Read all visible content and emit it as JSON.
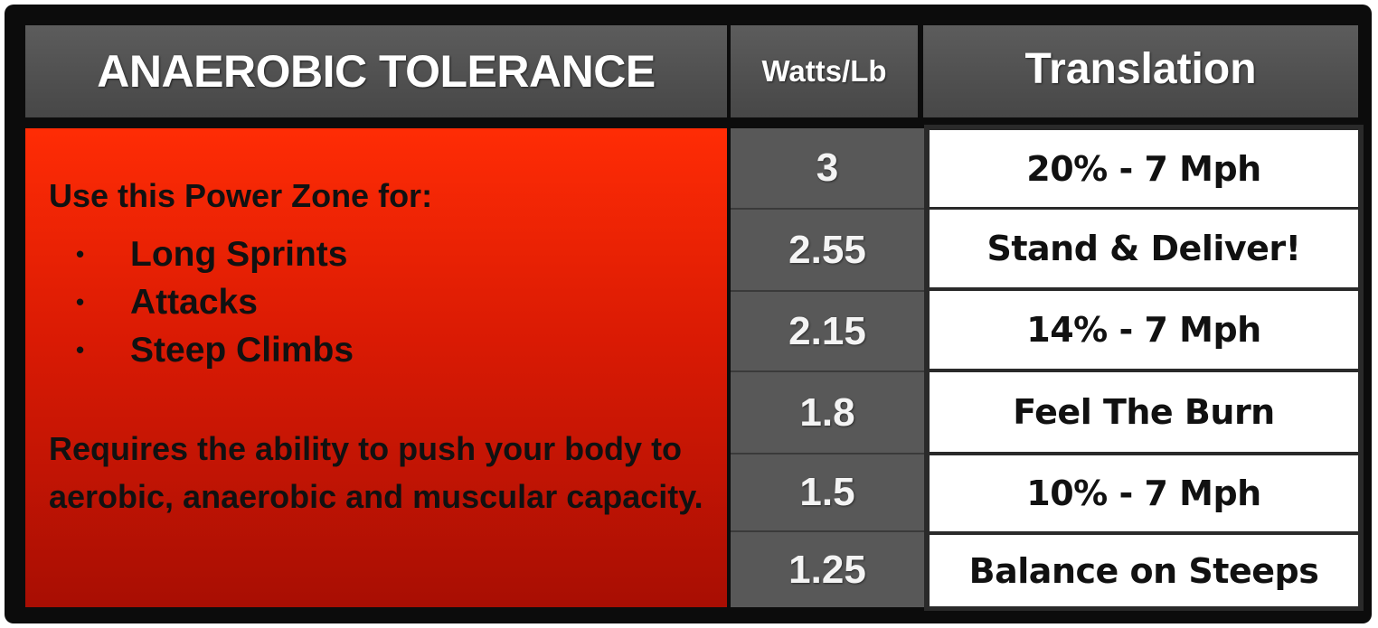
{
  "header": {
    "title": "ANAEROBIC TOLERANCE",
    "watts_label": "Watts/Lb",
    "translation_label": "Translation"
  },
  "info": {
    "intro": "Use this Power Zone for:",
    "uses": [
      "Long Sprints",
      "Attacks",
      "Steep Climbs"
    ],
    "bullet": "•",
    "requirement": "Requires the ability to push your body to aerobic, anaerobic and muscular capacity."
  },
  "rows": [
    {
      "watts": "3",
      "translation": "20% - 7 Mph"
    },
    {
      "watts": "2.55",
      "translation": "Stand & Deliver!"
    },
    {
      "watts": "2.15",
      "translation": "14% - 7 Mph"
    },
    {
      "watts": "1.8",
      "translation": "Feel The Burn"
    },
    {
      "watts": "1.5",
      "translation": "10% - 7 Mph"
    },
    {
      "watts": "1.25",
      "translation": "Balance on Steeps"
    }
  ],
  "colors": {
    "panel_top": "#ff2c05",
    "panel_bottom": "#a80e03",
    "header_bg": "#4f4f4f",
    "value_bg": "#585858"
  }
}
